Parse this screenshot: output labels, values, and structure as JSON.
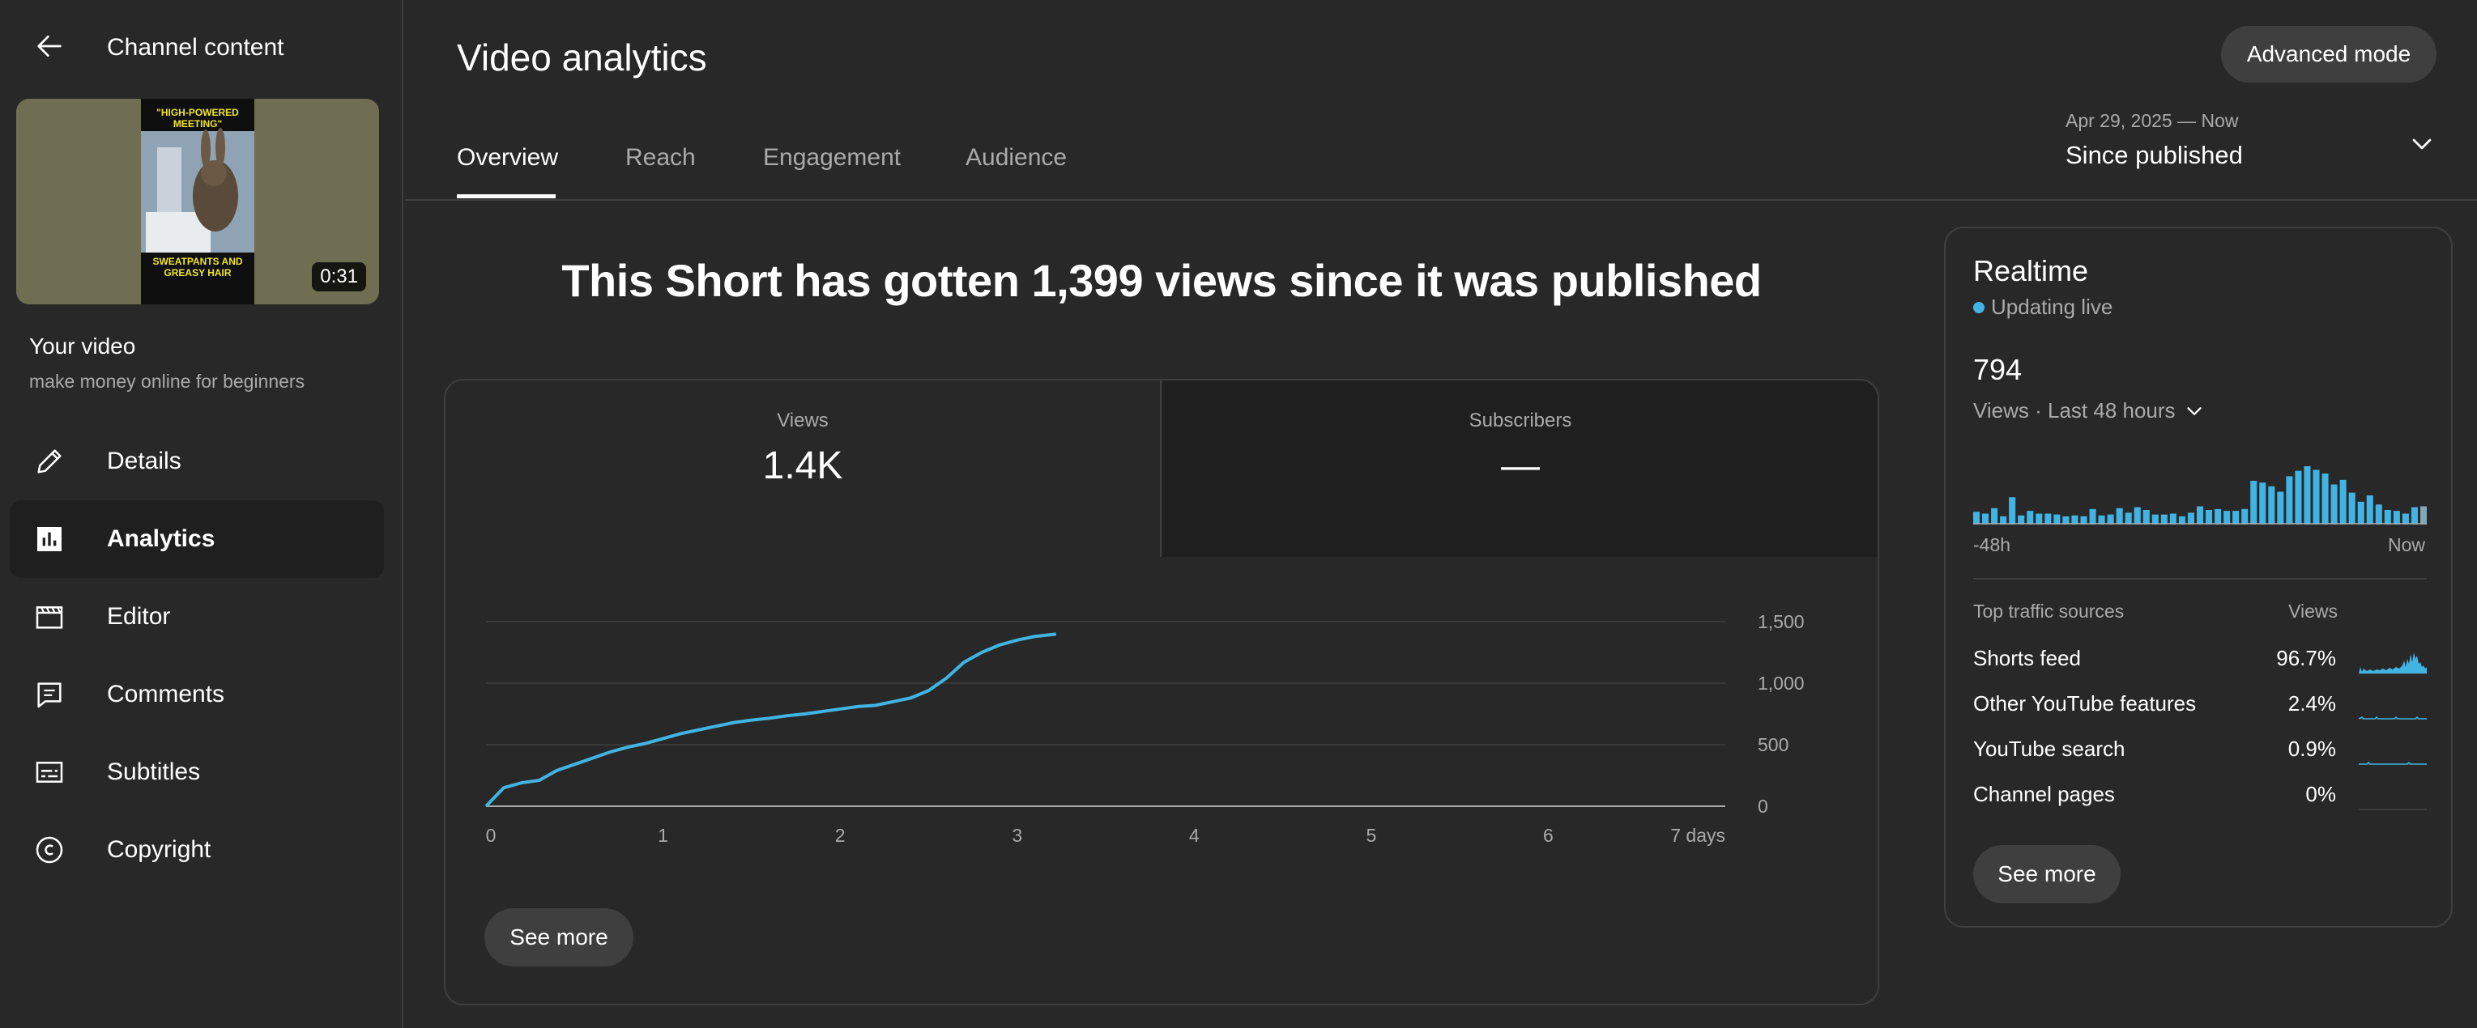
{
  "sidebar": {
    "back_title": "Channel content",
    "thumbnail": {
      "top_text": "\"HIGH-POWERED MEETING\"",
      "bottom_text": "SWEATPANTS AND GREASY HAIR",
      "duration": "0:31"
    },
    "your_video": "Your video",
    "video_title": "make money online for beginners",
    "items": [
      {
        "label": "Details",
        "icon": "pencil-icon"
      },
      {
        "label": "Analytics",
        "icon": "analytics-icon",
        "active": true
      },
      {
        "label": "Editor",
        "icon": "clapperboard-icon"
      },
      {
        "label": "Comments",
        "icon": "comment-icon"
      },
      {
        "label": "Subtitles",
        "icon": "subtitles-icon"
      },
      {
        "label": "Copyright",
        "icon": "copyright-icon"
      }
    ]
  },
  "header": {
    "title": "Video analytics",
    "advanced_mode": "Advanced mode",
    "tabs": [
      "Overview",
      "Reach",
      "Engagement",
      "Audience"
    ],
    "active_tab": "Overview",
    "date_range_small": "Apr 29, 2025 — Now",
    "date_range_label": "Since published"
  },
  "headline": "This Short has gotten 1,399 views since it was published",
  "metrics": {
    "views_label": "Views",
    "views_value": "1.4K",
    "subs_label": "Subscribers",
    "subs_value": "—"
  },
  "chart_data": {
    "type": "line",
    "series": [
      {
        "x": [
          0,
          0.1,
          0.2,
          0.3,
          0.4,
          0.5,
          0.6,
          0.7,
          0.8,
          0.9,
          1.0,
          1.1,
          1.2,
          1.3,
          1.4,
          1.5,
          1.6,
          1.7,
          1.8,
          1.9,
          2.0,
          2.1,
          2.2,
          2.3,
          2.4,
          2.5,
          2.6,
          2.7,
          2.8,
          2.9,
          3.0,
          3.1,
          3.22
        ],
        "y": [
          0,
          150,
          190,
          210,
          290,
          340,
          390,
          440,
          480,
          510,
          550,
          590,
          620,
          650,
          680,
          700,
          715,
          735,
          750,
          770,
          790,
          810,
          820,
          850,
          880,
          940,
          1040,
          1170,
          1250,
          1310,
          1350,
          1380,
          1399
        ]
      }
    ],
    "x_ticks": [
      "0",
      "1",
      "2",
      "3",
      "4",
      "5",
      "6",
      "7 days"
    ],
    "xlim": [
      0,
      7
    ],
    "y_ticks": [
      "0",
      "500",
      "1,000",
      "1,500"
    ],
    "ylim": [
      0,
      1500
    ],
    "grid": true,
    "line_color": "#41b4e3"
  },
  "main_see_more": "See more",
  "realtime": {
    "title": "Realtime",
    "status": "Updating live",
    "value": "794",
    "subtitle": "Views · Last 48 hours",
    "bars": [
      14,
      12,
      18,
      9,
      30,
      10,
      15,
      12,
      12,
      11,
      9,
      10,
      9,
      17,
      10,
      11,
      18,
      13,
      19,
      16,
      11,
      11,
      12,
      9,
      13,
      20,
      16,
      17,
      15,
      15,
      17,
      48,
      46,
      42,
      36,
      53,
      59,
      64,
      60,
      56,
      44,
      49,
      35,
      25,
      32,
      22,
      16,
      15,
      12,
      19,
      20
    ],
    "axis_start": "-48h",
    "axis_end": "Now",
    "sources_header": "Top traffic sources",
    "sources_views_header": "Views",
    "sources": [
      {
        "name": "Shorts feed",
        "pct": "96.7%"
      },
      {
        "name": "Other YouTube features",
        "pct": "2.4%"
      },
      {
        "name": "YouTube search",
        "pct": "0.9%"
      },
      {
        "name": "Channel pages",
        "pct": "0%"
      }
    ],
    "see_more": "See more"
  },
  "colors": {
    "accent": "#41b4e3",
    "background": "#282828",
    "button": "#3f3f3f"
  }
}
